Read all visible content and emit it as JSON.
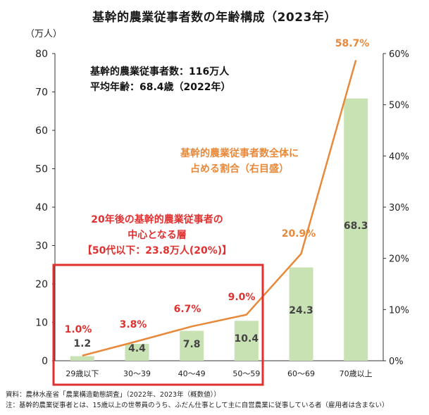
{
  "chart_data": {
    "type": "bar+line",
    "title": "基幹的農業従事者数の年齢構成（2023年）",
    "ylabel_left": "（万人）",
    "ylim_left": [
      0,
      80
    ],
    "yticks_left": [
      "0",
      "10",
      "20",
      "30",
      "40",
      "50",
      "60",
      "70",
      "80"
    ],
    "ylim_right": [
      0,
      60
    ],
    "yticks_right": [
      "0%",
      "10%",
      "20%",
      "30%",
      "40%",
      "50%",
      "60%"
    ],
    "categories": [
      "29歳以下",
      "30～39",
      "40～49",
      "50～59",
      "60～69",
      "70歳以上"
    ],
    "bar_series": {
      "values": [
        1.2,
        4.4,
        7.8,
        10.4,
        24.3,
        68.3
      ],
      "labels": [
        "1.2",
        "4.4",
        "7.8",
        "10.4",
        "24.3",
        "68.3"
      ],
      "color": "#c9e2b3"
    },
    "line_series": {
      "name": "基幹的農業従事者数全体に占める割合（右目盛）",
      "name_lines": [
        "基幹的農業従事者数全体に",
        "占める割合（右目盛）"
      ],
      "values": [
        1.0,
        3.8,
        6.7,
        9.0,
        20.9,
        58.7
      ],
      "labels": [
        "1.0%",
        "3.8%",
        "6.7%",
        "9.0%",
        "20.9%",
        "58.7%"
      ],
      "color": "#e8893a"
    },
    "highlight_color": "#e03030",
    "summary": {
      "line1": "基幹的農業従事者数：116万人",
      "line2": "平均年齢：68.4歳（2022年）"
    },
    "highlight": {
      "line1": "20年後の基幹的農業従事者の",
      "line2": "中心となる層",
      "line3": "【50代以下：23.8万人(20%)】"
    }
  },
  "notes": {
    "source": "資料：農林水産省「農業構造動態調査」（2022年、2023年（概数値））",
    "footnote": "注：基幹的農業従事者とは、15歳以上の世帯員のうち、ふだん仕事として主に自営農業に従事している者（雇用者は含まない）"
  }
}
